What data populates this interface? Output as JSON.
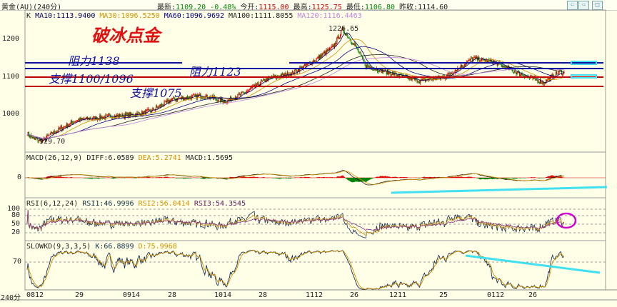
{
  "header": {
    "symbol": "黄金(AU)(240分)",
    "latest_label": "最新:",
    "latest": "1109.20",
    "change": "-0.48%",
    "open_label": "今开:",
    "open": "1115.00",
    "high_label": "最高:",
    "high": "1125.75",
    "low_label": "最低:",
    "low": "1106.80",
    "prev_label": "昨收:",
    "prev": "1114.60",
    "icons": [
      "arrow-left-icon",
      "arrow-right-icon",
      "window-icon"
    ]
  },
  "main": {
    "k_label": "K",
    "ma10": "MA10:1113.9400",
    "ma30": "MA30:1096.5250",
    "ma60": "MA60:1096.9692",
    "ma100": "MA100:1111.8055",
    "ma120": "MA120:1116.4463",
    "title": "破冰点金",
    "high_mark": "1226.65",
    "low_mark": "929.70",
    "y_ticks": [
      "1200",
      "1100",
      "1000"
    ],
    "annotations": {
      "r1": "阻力1138",
      "r2": "阻力1123",
      "s1": "支撑1100/1096",
      "s2": "支撑1075"
    }
  },
  "macd": {
    "label": "MACD(26,12,9)",
    "diff": "DIFF:6.0589",
    "dea": "DEA:5.2741",
    "macd": "MACD:1.5695",
    "y_tick": "0"
  },
  "rsi": {
    "label": "RSI(6,12,24)",
    "rsi1": "RSI1:46.9996",
    "rsi2": "RSI2:56.0414",
    "rsi3": "RSI3:54.3545",
    "y_ticks": [
      "100",
      "80",
      "50",
      "20"
    ]
  },
  "kd": {
    "label": "SLOWKD(9,3,3,5)",
    "k": "K:66.8899",
    "d": "D:75.9968",
    "y_tick": "70"
  },
  "x_axis": {
    "period": "240分",
    "ticks": [
      "0812",
      "29",
      "0914",
      "28",
      "1014",
      "28",
      "1112",
      "26",
      "1211",
      "25",
      "0112",
      "26"
    ]
  },
  "colors": {
    "up": "#e00000",
    "down": "#008000",
    "ma10": "#000060",
    "ma30": "#d09000",
    "ma60": "#000080",
    "ma100": "#202020",
    "ma120": "#c080e0",
    "resistance": "#1010a0",
    "support": "#c00000",
    "trend": "#40e0f0",
    "circle": "#d000d0"
  },
  "price_path": [
    [
      950,
      929.7
    ],
    [
      0,
      950
    ],
    [
      8,
      935
    ],
    [
      18,
      929.7
    ],
    [
      30,
      950
    ],
    [
      60,
      985
    ],
    [
      100,
      995
    ],
    [
      130,
      1000
    ],
    [
      150,
      1010
    ],
    [
      175,
      1040
    ],
    [
      210,
      1050
    ],
    [
      225,
      1045
    ],
    [
      240,
      1035
    ],
    [
      265,
      1060
    ],
    [
      290,
      1095
    ],
    [
      320,
      1110
    ],
    [
      345,
      1140
    ],
    [
      370,
      1180
    ],
    [
      382,
      1226.65
    ],
    [
      398,
      1180
    ],
    [
      410,
      1130
    ],
    [
      440,
      1110
    ],
    [
      475,
      1090
    ],
    [
      505,
      1100
    ],
    [
      540,
      1150
    ],
    [
      565,
      1140
    ],
    [
      595,
      1110
    ],
    [
      625,
      1085
    ],
    [
      645,
      1115
    ],
    [
      650,
      1109.2
    ]
  ]
}
